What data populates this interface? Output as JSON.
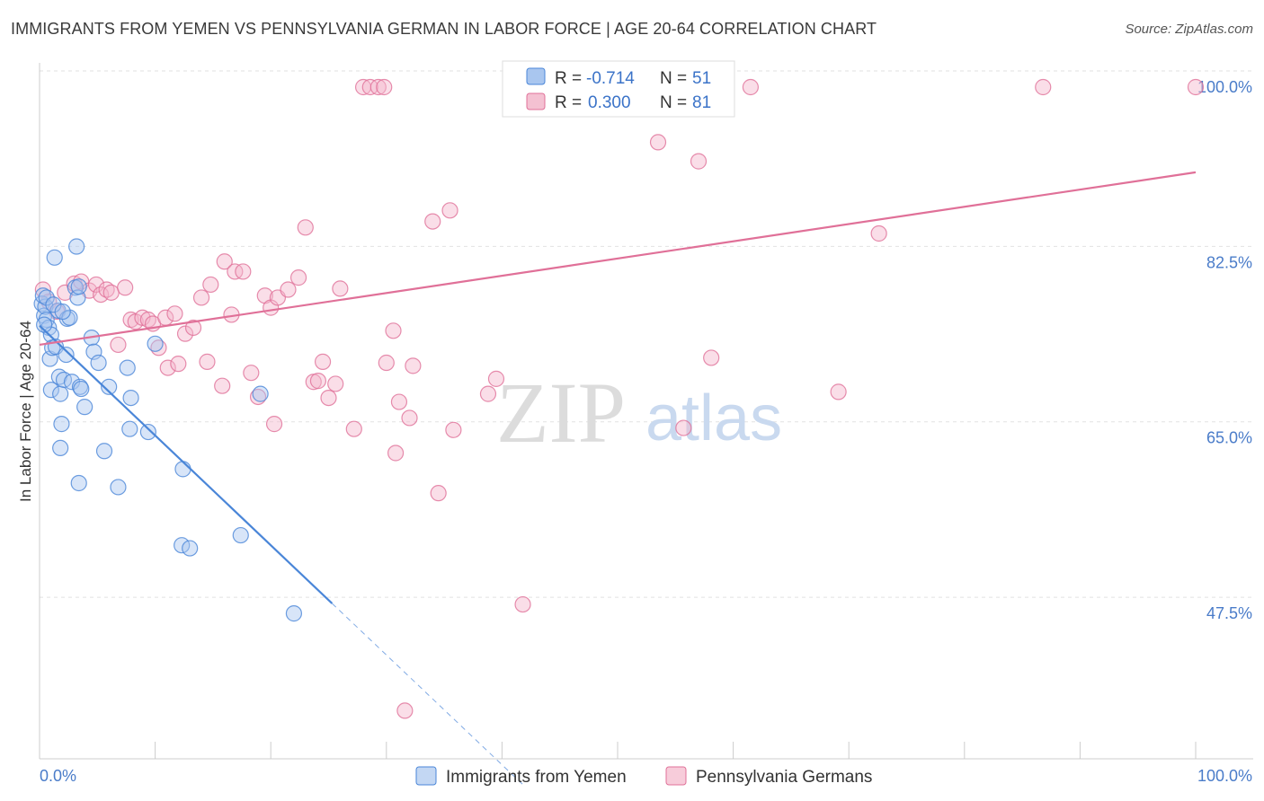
{
  "title": "IMMIGRANTS FROM YEMEN VS PENNSYLVANIA GERMAN IN LABOR FORCE | AGE 20-64 CORRELATION CHART",
  "source": "Source: ZipAtlas.com",
  "watermark": {
    "zip": "ZIP",
    "atlas": "atlas"
  },
  "colors": {
    "blue": "#4a86d8",
    "blue_fill": "#a9c6ef",
    "pink": "#e07098",
    "pink_fill": "#f4b6cb",
    "tick": "#4a7cc9"
  },
  "legend": {
    "r_label": "R =",
    "n_label": "N =",
    "items": [
      {
        "r": "-0.714",
        "n": "51"
      },
      {
        "r": "0.300",
        "n": "81"
      }
    ]
  },
  "chart_data": {
    "type": "scatter",
    "xlabel": "",
    "ylabel": "In Labor Force | Age 20-64",
    "xlim": [
      0,
      100
    ],
    "ylim": [
      33,
      101.5
    ],
    "x_tick_labels": [
      "0.0%",
      "100.0%"
    ],
    "y_ticks": [
      {
        "value": 100,
        "label": "100.0%"
      },
      {
        "value": 82.5,
        "label": "82.5%"
      },
      {
        "value": 65,
        "label": "65.0%"
      },
      {
        "value": 47.5,
        "label": "47.5%"
      }
    ],
    "grid": true,
    "series": [
      {
        "name": "Immigrants from Yemen",
        "color": "#4a86d8",
        "trend": {
          "x0": 0,
          "y0": 76.2,
          "x1": 25.3,
          "y1": 48.5,
          "dashed_to_x": 42
        },
        "points": [
          [
            0.2,
            78.4
          ],
          [
            0.4,
            77.2
          ],
          [
            0.5,
            78.1
          ],
          [
            0.6,
            76.8
          ],
          [
            0.8,
            76.0
          ],
          [
            1.0,
            75.3
          ],
          [
            0.9,
            72.9
          ],
          [
            1.1,
            74.0
          ],
          [
            1.0,
            69.8
          ],
          [
            1.3,
            83.0
          ],
          [
            1.4,
            74.1
          ],
          [
            1.6,
            77.7
          ],
          [
            1.7,
            71.1
          ],
          [
            1.8,
            69.4
          ],
          [
            1.9,
            66.4
          ],
          [
            1.8,
            64.0
          ],
          [
            2.1,
            70.8
          ],
          [
            2.3,
            73.3
          ],
          [
            2.4,
            76.9
          ],
          [
            2.6,
            77.0
          ],
          [
            2.8,
            70.6
          ],
          [
            3.1,
            80.0
          ],
          [
            3.3,
            79.0
          ],
          [
            3.2,
            84.1
          ],
          [
            3.4,
            80.1
          ],
          [
            3.5,
            70.1
          ],
          [
            3.6,
            69.9
          ],
          [
            3.4,
            60.5
          ],
          [
            3.9,
            68.1
          ],
          [
            4.5,
            75.0
          ],
          [
            4.7,
            73.6
          ],
          [
            5.1,
            72.5
          ],
          [
            5.6,
            63.7
          ],
          [
            6.0,
            70.1
          ],
          [
            6.8,
            60.1
          ],
          [
            7.6,
            72.0
          ],
          [
            7.9,
            69.0
          ],
          [
            7.8,
            65.9
          ],
          [
            9.4,
            65.6
          ],
          [
            10.0,
            74.4
          ],
          [
            12.4,
            61.9
          ],
          [
            12.3,
            54.3
          ],
          [
            13.0,
            54.0
          ],
          [
            17.4,
            55.3
          ],
          [
            19.1,
            69.4
          ],
          [
            22.0,
            47.5
          ],
          [
            0.3,
            79.2
          ],
          [
            0.6,
            79.0
          ],
          [
            1.2,
            78.3
          ],
          [
            2.0,
            77.6
          ],
          [
            0.4,
            76.3
          ]
        ]
      },
      {
        "name": "Pennsylvania Germans",
        "color": "#e07098",
        "trend": {
          "x0": 0,
          "y0": 74.3,
          "x1": 100,
          "y1": 91.5
        },
        "points": [
          [
            0.3,
            79.8
          ],
          [
            0.8,
            78.6
          ],
          [
            1.5,
            77.6
          ],
          [
            2.2,
            79.5
          ],
          [
            3.0,
            80.4
          ],
          [
            3.6,
            80.6
          ],
          [
            4.3,
            79.7
          ],
          [
            4.9,
            80.3
          ],
          [
            5.3,
            79.3
          ],
          [
            5.8,
            79.8
          ],
          [
            6.2,
            79.5
          ],
          [
            7.4,
            80.0
          ],
          [
            6.8,
            74.3
          ],
          [
            7.9,
            76.8
          ],
          [
            8.3,
            76.6
          ],
          [
            8.9,
            77.0
          ],
          [
            9.4,
            76.8
          ],
          [
            9.8,
            76.4
          ],
          [
            10.3,
            74.0
          ],
          [
            10.9,
            77.0
          ],
          [
            11.1,
            72.0
          ],
          [
            11.7,
            77.4
          ],
          [
            12.0,
            72.4
          ],
          [
            12.6,
            75.4
          ],
          [
            13.3,
            76.0
          ],
          [
            14.0,
            79.0
          ],
          [
            14.5,
            72.6
          ],
          [
            14.8,
            80.3
          ],
          [
            15.8,
            70.2
          ],
          [
            16.0,
            82.6
          ],
          [
            16.6,
            77.3
          ],
          [
            16.9,
            81.6
          ],
          [
            17.6,
            81.6
          ],
          [
            18.3,
            71.5
          ],
          [
            18.9,
            69.1
          ],
          [
            19.5,
            79.2
          ],
          [
            20.0,
            78.0
          ],
          [
            20.6,
            79.0
          ],
          [
            20.3,
            66.4
          ],
          [
            21.5,
            79.8
          ],
          [
            22.4,
            81.0
          ],
          [
            23.0,
            86.0
          ],
          [
            23.7,
            70.6
          ],
          [
            24.1,
            70.7
          ],
          [
            24.5,
            72.6
          ],
          [
            25.0,
            69.0
          ],
          [
            25.6,
            70.4
          ],
          [
            26.0,
            79.9
          ],
          [
            27.2,
            65.9
          ],
          [
            28.0,
            100.0
          ],
          [
            28.6,
            100.0
          ],
          [
            29.3,
            100.0
          ],
          [
            29.8,
            100.0
          ],
          [
            30.0,
            72.5
          ],
          [
            30.6,
            75.7
          ],
          [
            30.8,
            63.5
          ],
          [
            31.1,
            68.6
          ],
          [
            32.0,
            67.0
          ],
          [
            32.3,
            72.2
          ],
          [
            34.0,
            86.6
          ],
          [
            34.5,
            59.5
          ],
          [
            35.5,
            87.7
          ],
          [
            35.8,
            65.8
          ],
          [
            38.8,
            69.4
          ],
          [
            39.5,
            70.9
          ],
          [
            41.7,
            100.0
          ],
          [
            42.5,
            100.0
          ],
          [
            44.0,
            100.0
          ],
          [
            45.6,
            100.0
          ],
          [
            46.8,
            100.0
          ],
          [
            53.5,
            94.5
          ],
          [
            55.7,
            66.0
          ],
          [
            57.0,
            92.6
          ],
          [
            58.1,
            73.0
          ],
          [
            61.5,
            100.0
          ],
          [
            69.1,
            69.6
          ],
          [
            72.6,
            85.4
          ],
          [
            86.8,
            100.0
          ],
          [
            100.0,
            100.0
          ],
          [
            41.8,
            48.4
          ],
          [
            31.6,
            37.8
          ]
        ]
      }
    ]
  }
}
